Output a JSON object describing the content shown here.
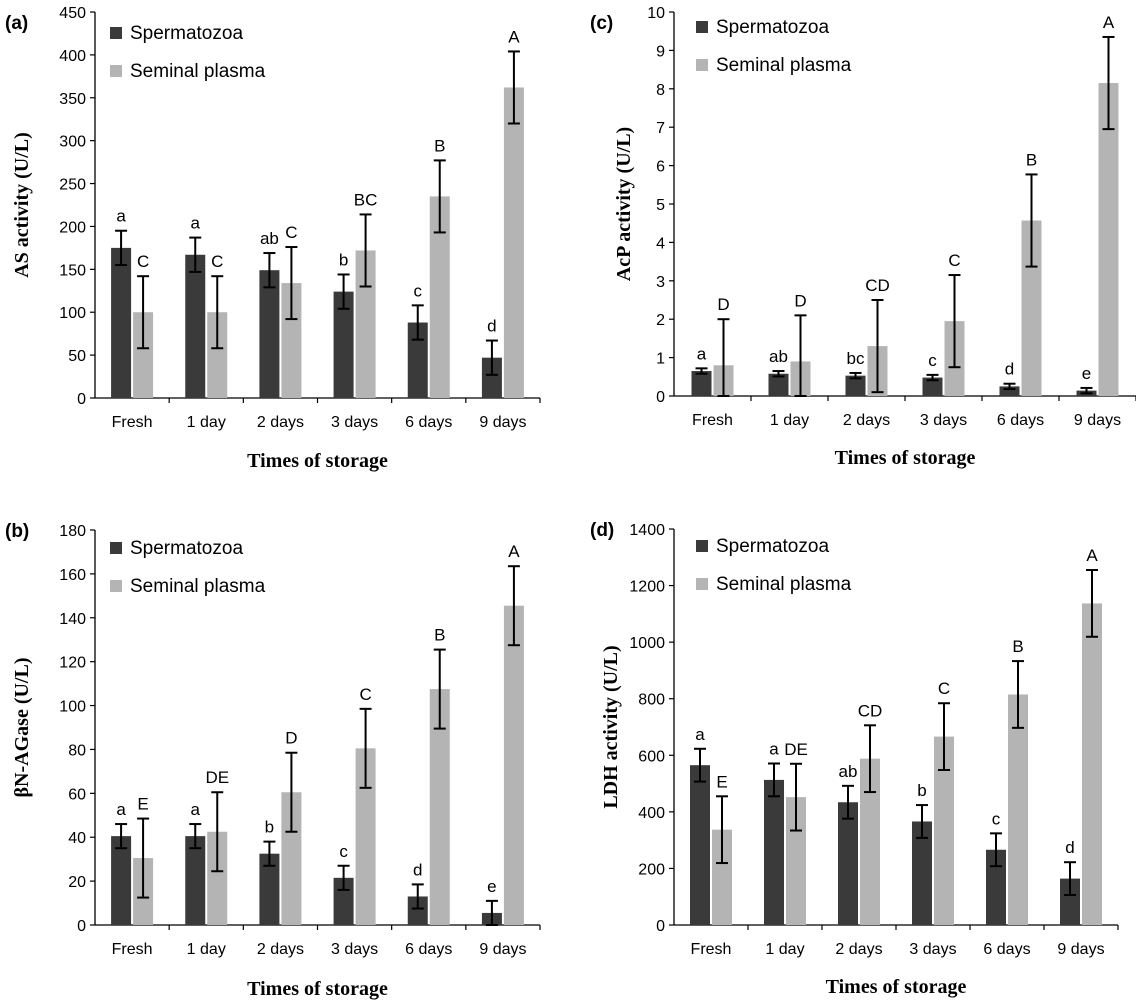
{
  "chart_data": [
    {
      "type": "bar",
      "panel_label": "(a)",
      "categories": [
        "Fresh",
        "1 day",
        "2 days",
        "3 days",
        "6 days",
        "9 days"
      ],
      "xlabel": "Times of storage",
      "ylabel": "AS activity (U/L)",
      "ylim": [
        0,
        450
      ],
      "yticks": [
        0,
        50,
        100,
        150,
        200,
        250,
        300,
        350,
        400,
        450
      ],
      "legend_position": "top-left",
      "series": [
        {
          "name": "Spermatozoa",
          "color": "#3a3a3a",
          "values": [
            175,
            167,
            149,
            124,
            88,
            47
          ],
          "errors": [
            20,
            20,
            20,
            20,
            20,
            20
          ],
          "letters": [
            "a",
            "a",
            "ab",
            "b",
            "c",
            "d"
          ]
        },
        {
          "name": "Seminal plasma",
          "color": "#b4b4b4",
          "values": [
            100,
            100,
            134,
            172,
            235,
            362
          ],
          "errors": [
            42,
            42,
            42,
            42,
            42,
            42
          ],
          "letters": [
            "C",
            "C",
            "C",
            "BC",
            "B",
            "A"
          ]
        }
      ]
    },
    {
      "type": "bar",
      "panel_label": "(c)",
      "categories": [
        "Fresh",
        "1 day",
        "2 days",
        "3 days",
        "6 days",
        "9 days"
      ],
      "xlabel": "Times of storage",
      "ylabel": "AcP activity (U/L)",
      "ylim": [
        0,
        10
      ],
      "yticks": [
        0,
        1,
        2,
        3,
        4,
        5,
        6,
        7,
        8,
        9,
        10
      ],
      "legend_position": "top-left",
      "series": [
        {
          "name": "Spermatozoa",
          "color": "#3a3a3a",
          "values": [
            0.65,
            0.58,
            0.53,
            0.48,
            0.25,
            0.14
          ],
          "errors": [
            0.07,
            0.07,
            0.07,
            0.07,
            0.07,
            0.07
          ],
          "letters": [
            "a",
            "ab",
            "bc",
            "c",
            "d",
            "e"
          ]
        },
        {
          "name": "Seminal plasma",
          "color": "#b4b4b4",
          "values": [
            0.8,
            0.9,
            1.3,
            1.95,
            4.57,
            8.15
          ],
          "errors": [
            1.2,
            1.2,
            1.2,
            1.2,
            1.2,
            1.2
          ],
          "letters": [
            "D",
            "D",
            "CD",
            "C",
            "B",
            "A"
          ]
        }
      ]
    },
    {
      "type": "bar",
      "panel_label": "(b)",
      "categories": [
        "Fresh",
        "1 day",
        "2 days",
        "3 days",
        "6 days",
        "9 days"
      ],
      "xlabel": "Times of storage",
      "ylabel": "βN-AGase (U/L)",
      "ylim": [
        0,
        180
      ],
      "yticks": [
        0,
        20,
        40,
        60,
        80,
        100,
        120,
        140,
        160,
        180
      ],
      "legend_position": "top-left",
      "series": [
        {
          "name": "Spermatozoa",
          "color": "#3a3a3a",
          "values": [
            40.5,
            40.5,
            32.5,
            21.5,
            13,
            5.5
          ],
          "errors": [
            5.5,
            5.5,
            5.5,
            5.5,
            5.5,
            5.5
          ],
          "letters": [
            "a",
            "a",
            "b",
            "c",
            "d",
            "e"
          ]
        },
        {
          "name": "Seminal plasma",
          "color": "#b4b4b4",
          "values": [
            30.5,
            42.5,
            60.5,
            80.5,
            107.5,
            145.5
          ],
          "errors": [
            18,
            18,
            18,
            18,
            18,
            18
          ],
          "letters": [
            "E",
            "DE",
            "D",
            "C",
            "B",
            "A"
          ]
        }
      ]
    },
    {
      "type": "bar",
      "panel_label": "(d)",
      "categories": [
        "Fresh",
        "1 day",
        "2 days",
        "3 days",
        "6 days",
        "9 days"
      ],
      "xlabel": "Times of storage",
      "ylabel": "LDH activity (U/L)",
      "ylim": [
        0,
        1400
      ],
      "yticks": [
        0,
        200,
        400,
        600,
        800,
        1000,
        1200,
        1400
      ],
      "legend_position": "top-left",
      "series": [
        {
          "name": "Spermatozoa",
          "color": "#3a3a3a",
          "values": [
            565,
            513,
            434,
            366,
            266,
            164
          ],
          "errors": [
            58,
            58,
            58,
            58,
            58,
            58
          ],
          "letters": [
            "a",
            "a",
            "ab",
            "b",
            "c",
            "d"
          ]
        },
        {
          "name": "Seminal plasma",
          "color": "#b4b4b4",
          "values": [
            337,
            452,
            588,
            666,
            815,
            1137
          ],
          "errors": [
            118,
            118,
            118,
            118,
            118,
            118
          ],
          "letters": [
            "E",
            "DE",
            "CD",
            "C",
            "B",
            "A"
          ]
        }
      ]
    }
  ]
}
